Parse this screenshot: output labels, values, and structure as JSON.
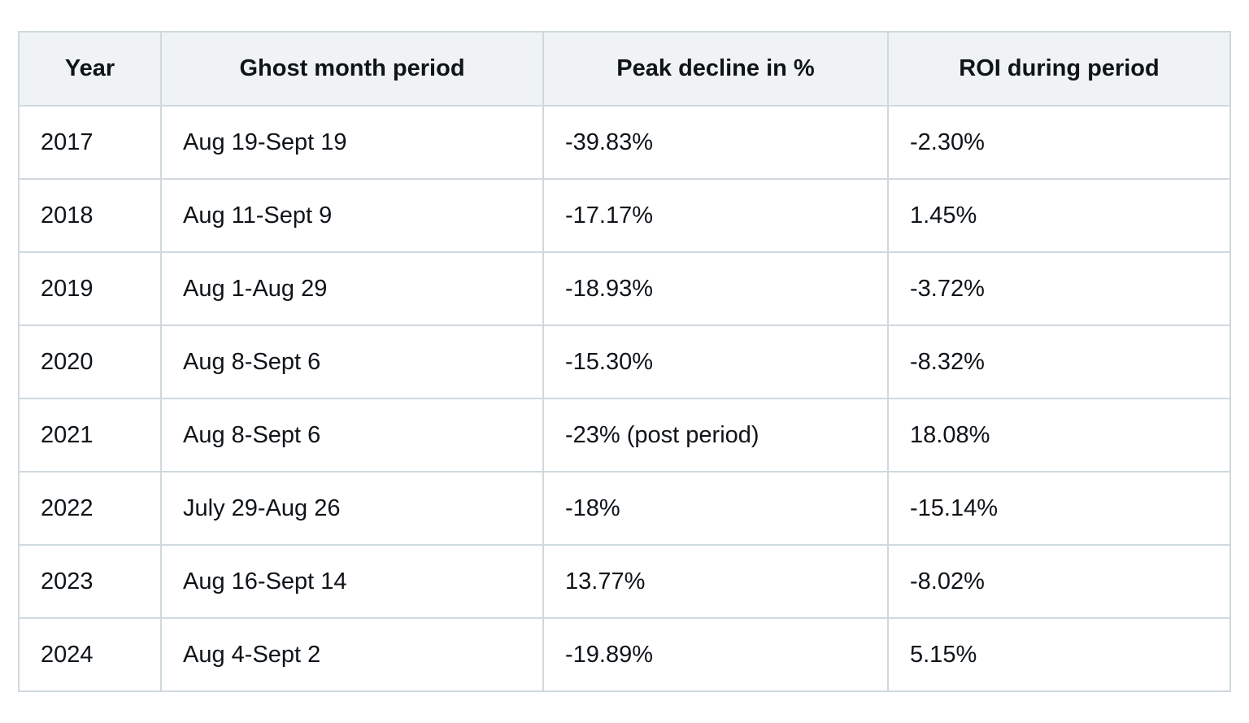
{
  "table": {
    "headers": [
      "Year",
      "Ghost month period",
      "Peak decline in %",
      "ROI during period"
    ],
    "rows": [
      [
        "2017",
        "Aug 19-Sept 19",
        "-39.83%",
        "-2.30%"
      ],
      [
        "2018",
        "Aug 11-Sept 9",
        "-17.17%",
        "1.45%"
      ],
      [
        "2019",
        "Aug 1-Aug 29",
        "-18.93%",
        "-3.72%"
      ],
      [
        "2020",
        "Aug 8-Sept 6",
        "-15.30%",
        "-8.32%"
      ],
      [
        "2021",
        "Aug 8-Sept 6",
        "-23% (post period)",
        "18.08%"
      ],
      [
        "2022",
        "July 29-Aug 26",
        "-18%",
        "-15.14%"
      ],
      [
        "2023",
        "Aug 16-Sept 14",
        "13.77%",
        "-8.02%"
      ],
      [
        "2024",
        "Aug 4-Sept 2",
        "-19.89%",
        "5.15%"
      ]
    ]
  },
  "colors": {
    "header_background": "#eff3f4",
    "border": "#cfd9de",
    "text": "#0f1419"
  }
}
